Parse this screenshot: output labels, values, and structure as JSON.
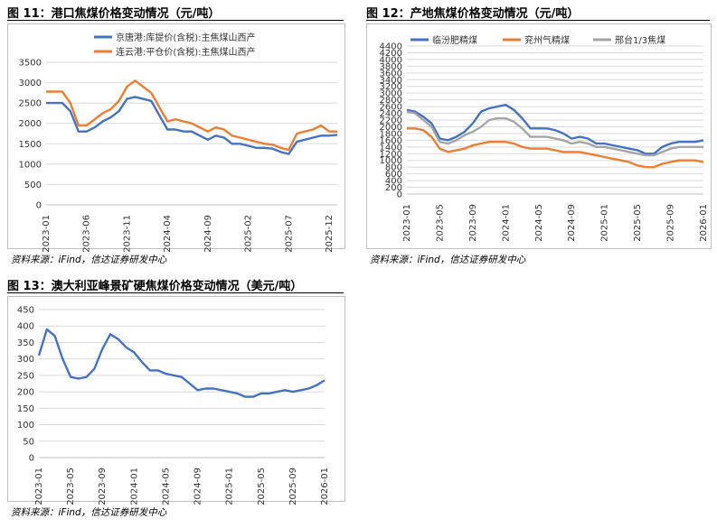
{
  "figures": [
    {
      "title": "图 11：港口焦煤价格变动情况（元/吨）",
      "source": "资料来源：iFind，信达证券研发中心",
      "chart_data": {
        "type": "line",
        "ylim": [
          0,
          3500
        ],
        "yticks": [
          0,
          500,
          1000,
          1500,
          2000,
          2500,
          3000,
          3500
        ],
        "x_ticks": [
          "2023-01",
          "2023-06",
          "2023-11",
          "2024-04",
          "2024-09",
          "2025-02",
          "2025-07",
          "2025-12"
        ],
        "legend_position": "top",
        "series": [
          {
            "name": "京唐港:库提价(含税):主焦煤山西产",
            "color": "#4472C4",
            "x": [
              "2023-01",
              "2023-02",
              "2023-03",
              "2023-04",
              "2023-05",
              "2023-06",
              "2023-07",
              "2023-08",
              "2023-09",
              "2023-10",
              "2023-11",
              "2023-12",
              "2024-01",
              "2024-02",
              "2024-03",
              "2024-04",
              "2024-05",
              "2024-06",
              "2024-07",
              "2024-08",
              "2024-09",
              "2024-10",
              "2024-11",
              "2024-12",
              "2025-01",
              "2025-02",
              "2025-03",
              "2025-04",
              "2025-05",
              "2025-06",
              "2025-07",
              "2025-08",
              "2025-09",
              "2025-10",
              "2025-11",
              "2025-12",
              "2026-01"
            ],
            "values": [
              2500,
              2500,
              2500,
              2300,
              1800,
              1800,
              1900,
              2050,
              2150,
              2300,
              2600,
              2650,
              2600,
              2550,
              2200,
              1850,
              1850,
              1800,
              1800,
              1700,
              1600,
              1700,
              1650,
              1500,
              1500,
              1450,
              1400,
              1400,
              1380,
              1300,
              1250,
              1550,
              1600,
              1650,
              1700,
              1700,
              1720
            ]
          },
          {
            "name": "连云港:平仓价(含税):主焦煤山西产",
            "color": "#ED7D31",
            "x": [
              "2023-01",
              "2023-02",
              "2023-03",
              "2023-04",
              "2023-05",
              "2023-06",
              "2023-07",
              "2023-08",
              "2023-09",
              "2023-10",
              "2023-11",
              "2023-12",
              "2024-01",
              "2024-02",
              "2024-03",
              "2024-04",
              "2024-05",
              "2024-06",
              "2024-07",
              "2024-08",
              "2024-09",
              "2024-10",
              "2024-11",
              "2024-12",
              "2025-01",
              "2025-02",
              "2025-03",
              "2025-04",
              "2025-05",
              "2025-06",
              "2025-07",
              "2025-08",
              "2025-09",
              "2025-10",
              "2025-11",
              "2025-12",
              "2026-01"
            ],
            "values": [
              2780,
              2780,
              2780,
              2500,
              1950,
              1950,
              2100,
              2250,
              2350,
              2550,
              2900,
              3050,
              2900,
              2750,
              2400,
              2050,
              2100,
              2050,
              2000,
              1900,
              1800,
              1900,
              1850,
              1700,
              1650,
              1600,
              1550,
              1500,
              1480,
              1400,
              1350,
              1750,
              1800,
              1850,
              1950,
              1800,
              1800
            ]
          }
        ]
      }
    },
    {
      "title": "图 12：产地焦煤价格变动情况（元/吨）",
      "source": "资料来源：iFind，信达证券研发中心",
      "chart_data": {
        "type": "line",
        "ylim": [
          0,
          4400
        ],
        "yticks": [
          0,
          200,
          400,
          600,
          800,
          1000,
          1200,
          1400,
          1600,
          1800,
          2000,
          2200,
          2400,
          2600,
          2800,
          3000,
          3200,
          3400,
          3600,
          3800,
          4000,
          4200,
          4400
        ],
        "x_ticks": [
          "2023-01",
          "2023-05",
          "2023-09",
          "2024-01",
          "2024-05",
          "2024-09",
          "2025-01",
          "2025-05",
          "2025-09",
          "2026-01"
        ],
        "legend_position": "top",
        "series": [
          {
            "name": "临汾肥精煤",
            "color": "#4472C4",
            "x": [
              "2023-01",
              "2023-02",
              "2023-03",
              "2023-04",
              "2023-05",
              "2023-06",
              "2023-07",
              "2023-08",
              "2023-09",
              "2023-10",
              "2023-11",
              "2023-12",
              "2024-01",
              "2024-02",
              "2024-03",
              "2024-04",
              "2024-05",
              "2024-06",
              "2024-07",
              "2024-08",
              "2024-09",
              "2024-10",
              "2024-11",
              "2024-12",
              "2025-01",
              "2025-02",
              "2025-03",
              "2025-04",
              "2025-05",
              "2025-06",
              "2025-07",
              "2025-08",
              "2025-09",
              "2025-10",
              "2025-11",
              "2025-12",
              "2026-01"
            ],
            "values": [
              2500,
              2450,
              2300,
              2100,
              1650,
              1600,
              1700,
              1850,
              2100,
              2450,
              2550,
              2600,
              2650,
              2500,
              2250,
              1950,
              1950,
              1950,
              1900,
              1800,
              1650,
              1700,
              1650,
              1500,
              1500,
              1450,
              1400,
              1350,
              1300,
              1200,
              1200,
              1400,
              1500,
              1550,
              1550,
              1550,
              1600
            ]
          },
          {
            "name": "兖州气精煤",
            "color": "#ED7D31",
            "x": [
              "2023-01",
              "2023-02",
              "2023-03",
              "2023-04",
              "2023-05",
              "2023-06",
              "2023-07",
              "2023-08",
              "2023-09",
              "2023-10",
              "2023-11",
              "2023-12",
              "2024-01",
              "2024-02",
              "2024-03",
              "2024-04",
              "2024-05",
              "2024-06",
              "2024-07",
              "2024-08",
              "2024-09",
              "2024-10",
              "2024-11",
              "2024-12",
              "2025-01",
              "2025-02",
              "2025-03",
              "2025-04",
              "2025-05",
              "2025-06",
              "2025-07",
              "2025-08",
              "2025-09",
              "2025-10",
              "2025-11",
              "2025-12",
              "2026-01"
            ],
            "values": [
              1950,
              1950,
              1900,
              1700,
              1350,
              1250,
              1300,
              1350,
              1450,
              1500,
              1550,
              1550,
              1550,
              1500,
              1400,
              1350,
              1350,
              1350,
              1300,
              1250,
              1250,
              1250,
              1200,
              1150,
              1100,
              1050,
              1000,
              950,
              850,
              800,
              800,
              900,
              950,
              1000,
              1000,
              1000,
              950
            ]
          },
          {
            "name": "邢台1/3焦煤",
            "color": "#A5A5A5",
            "x": [
              "2023-01",
              "2023-02",
              "2023-03",
              "2023-04",
              "2023-05",
              "2023-06",
              "2023-07",
              "2023-08",
              "2023-09",
              "2023-10",
              "2023-11",
              "2023-12",
              "2024-01",
              "2024-02",
              "2024-03",
              "2024-04",
              "2024-05",
              "2024-06",
              "2024-07",
              "2024-08",
              "2024-09",
              "2024-10",
              "2024-11",
              "2024-12",
              "2025-01",
              "2025-02",
              "2025-03",
              "2025-04",
              "2025-05",
              "2025-06",
              "2025-07",
              "2025-08",
              "2025-09",
              "2025-10",
              "2025-11",
              "2025-12",
              "2026-01"
            ],
            "values": [
              2450,
              2400,
              2200,
              2000,
              1550,
              1500,
              1600,
              1750,
              1850,
              2000,
              2200,
              2250,
              2250,
              2150,
              1950,
              1700,
              1700,
              1700,
              1650,
              1600,
              1500,
              1550,
              1500,
              1400,
              1400,
              1350,
              1300,
              1250,
              1200,
              1150,
              1150,
              1250,
              1350,
              1400,
              1400,
              1400,
              1400
            ]
          }
        ]
      }
    },
    {
      "title": "图 13：澳大利亚峰景矿硬焦煤价格变动情况（美元/吨）",
      "source": "资料来源：iFind，信达证券研发中心",
      "chart_data": {
        "type": "line",
        "ylim": [
          0,
          450
        ],
        "yticks": [
          0,
          50,
          100,
          150,
          200,
          250,
          300,
          350,
          400,
          450
        ],
        "x_ticks": [
          "2023-01",
          "2023-05",
          "2023-09",
          "2024-01",
          "2024-05",
          "2024-09",
          "2025-01",
          "2025-05",
          "2025-09",
          "2026-01"
        ],
        "series": [
          {
            "color": "#4472C4",
            "x": [
              "2023-01",
              "2023-02",
              "2023-03",
              "2023-04",
              "2023-05",
              "2023-06",
              "2023-07",
              "2023-08",
              "2023-09",
              "2023-10",
              "2023-11",
              "2023-12",
              "2024-01",
              "2024-02",
              "2024-03",
              "2024-04",
              "2024-05",
              "2024-06",
              "2024-07",
              "2024-08",
              "2024-09",
              "2024-10",
              "2024-11",
              "2024-12",
              "2025-01",
              "2025-02",
              "2025-03",
              "2025-04",
              "2025-05",
              "2025-06",
              "2025-07",
              "2025-08",
              "2025-09",
              "2025-10",
              "2025-11",
              "2025-12",
              "2026-01"
            ],
            "values": [
              310,
              390,
              370,
              300,
              245,
              240,
              245,
              270,
              330,
              375,
              360,
              335,
              320,
              290,
              265,
              265,
              255,
              250,
              245,
              225,
              205,
              210,
              210,
              205,
              200,
              195,
              185,
              185,
              195,
              195,
              200,
              205,
              200,
              205,
              210,
              220,
              235
            ]
          }
        ]
      }
    }
  ]
}
